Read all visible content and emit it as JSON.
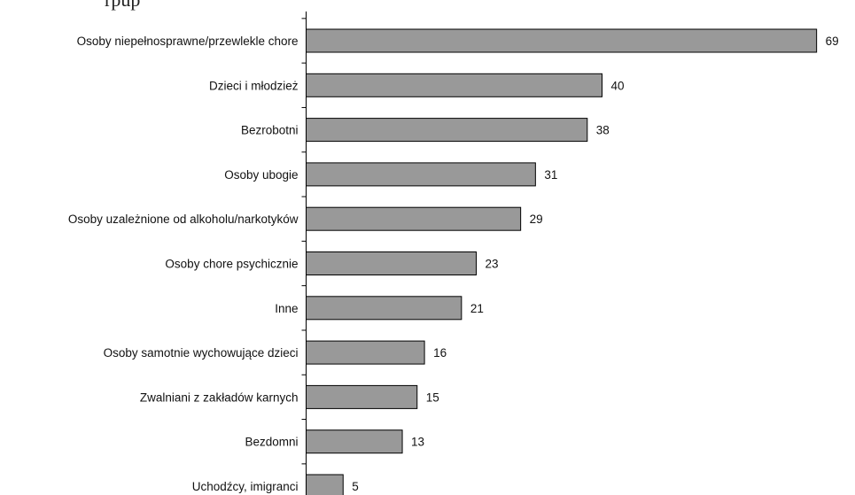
{
  "caption_fragment": "rpup",
  "chart_data": {
    "type": "bar",
    "orientation": "horizontal",
    "title": "",
    "xlabel": "",
    "ylabel": "",
    "categories": [
      "Osoby niepełnosprawne/przewlekle chore",
      "Dzieci i młodzież",
      "Bezrobotni",
      "Osoby ubogie",
      "Osoby uzależnione od alkoholu/narkotyków",
      "Osoby chore psychicznie",
      "Inne",
      "Osoby samotnie wychowujące dzieci",
      "Zwalniani z zakładów karnych",
      "Bezdomni",
      "Uchodźcy, imigranci"
    ],
    "values": [
      69,
      40,
      38,
      31,
      29,
      23,
      21,
      16,
      15,
      13,
      5
    ],
    "xlim": [
      0,
      70
    ],
    "grid": false,
    "legend": "none",
    "bar_color": "#999999",
    "bar_edge_color": "#000000"
  }
}
